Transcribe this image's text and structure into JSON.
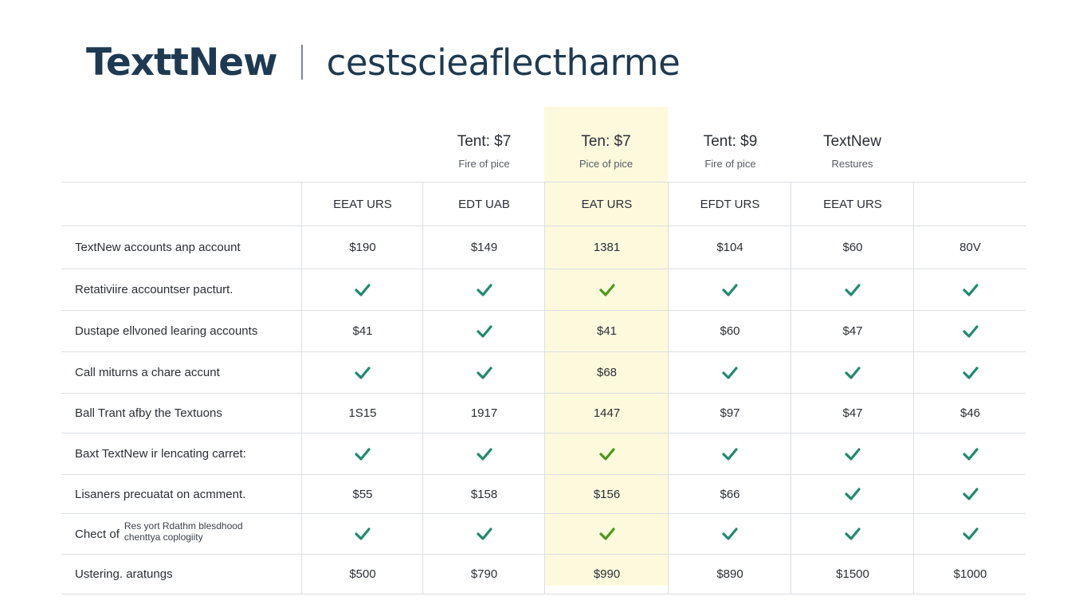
{
  "header": {
    "brand": "TexttNew",
    "tagline": "cestscieaflectharme"
  },
  "colors": {
    "brand": "#1e3a52",
    "highlight": "#fdf9dc",
    "check": "#1f8a6e",
    "check_highlight": "#4a9a1a"
  },
  "plans": [
    {
      "name": "Tent: $7",
      "sub": "Fire of pice"
    },
    {
      "name": "Ten: $7",
      "sub": "Pice of pice"
    },
    {
      "name": "Tent: $9",
      "sub": "Fire of pice"
    },
    {
      "name": "TextNew",
      "sub": "Restures"
    }
  ],
  "feature_headers": [
    "EEAT URS",
    "EDT UAB",
    "EAT URS",
    "EFDT URS",
    "EEAT URS",
    ""
  ],
  "rows": [
    {
      "label": "TextNew accounts anp account",
      "cells": [
        "$190",
        "$149",
        "1381",
        "$104",
        "$60",
        "80V"
      ]
    },
    {
      "label": "Retativiire accountser pacturt.",
      "cells": [
        "check",
        "check",
        "check",
        "check",
        "check",
        "check"
      ]
    },
    {
      "label": "Dustape ellvoned learing accounts",
      "cells": [
        "$41",
        "check",
        "$41",
        "$60",
        "$47",
        "check"
      ]
    },
    {
      "label": "Call miturns a chare accunt",
      "cells": [
        "check",
        "check",
        "$68",
        "check",
        "check",
        "check"
      ]
    },
    {
      "label": "Ball Trant afby the Textuons",
      "cells": [
        "1S15",
        "1917",
        "1447",
        "$97",
        "$47",
        "$46"
      ]
    },
    {
      "label": "Baxt TextNew ir lencating carret:",
      "cells": [
        "check",
        "check",
        "check",
        "check",
        "check",
        "check"
      ]
    },
    {
      "label": "Lisaners precuatat on acmment.",
      "cells": [
        "$55",
        "$158",
        "$156",
        "$66",
        "check",
        "check"
      ]
    },
    {
      "label_main": "Chect of",
      "label_small_1": "Res yort Rdathm blesdhood",
      "label_small_2": "chenttya coplogiity",
      "cells": [
        "check",
        "check",
        "check",
        "check",
        "check",
        "check"
      ]
    },
    {
      "label": "Ustering. aratungs",
      "cells": [
        "$500",
        "$790",
        "$990",
        "$890",
        "$1500",
        "$1000"
      ]
    }
  ]
}
